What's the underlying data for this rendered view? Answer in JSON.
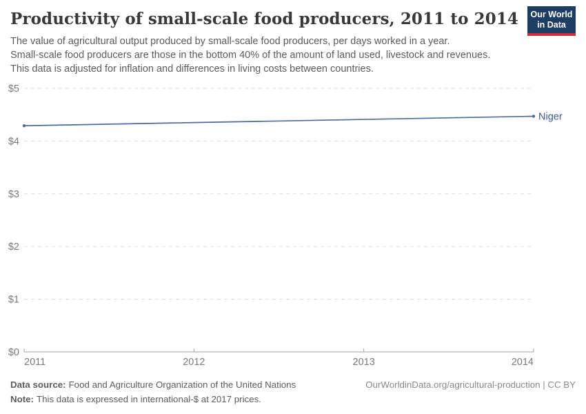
{
  "header": {
    "title": "Productivity of small-scale food producers, 2011 to 2014",
    "subtitle_lines": [
      "The value of agricultural output produced by small-scale food producers, per days worked in a year.",
      "Small-scale food producers are those in the bottom 40% of the amount of land used, livestock and revenues.",
      "This data is adjusted for inflation and differences in living costs between countries."
    ],
    "logo": {
      "line1": "Our World",
      "line2": "in Data"
    }
  },
  "chart_data": {
    "type": "line",
    "title": "Productivity of small-scale food producers, 2011 to 2014",
    "x": [
      2011,
      2012,
      2013,
      2014
    ],
    "x_tick_labels": [
      "2011",
      "2012",
      "2013",
      "2014"
    ],
    "series": [
      {
        "name": "Niger",
        "values": [
          4.29,
          4.35,
          4.41,
          4.47
        ],
        "color": "#4c6a9c"
      }
    ],
    "ylim": [
      0,
      5
    ],
    "y_ticks": [
      0,
      1,
      2,
      3,
      4,
      5
    ],
    "y_tick_labels": [
      "$0",
      "$1",
      "$2",
      "$3",
      "$4",
      "$5"
    ],
    "grid": "horizontal-dashed",
    "legend": "end-of-line-label",
    "unit": "international-$ at 2017 prices"
  },
  "footer": {
    "source_label": "Data source:",
    "source_text": "Food and Agriculture Organization of the United Nations",
    "note_label": "Note:",
    "note_text": "This data is expressed in international-$ at 2017 prices.",
    "link_text": "OurWorldinData.org/agricultural-production | CC BY"
  },
  "colors": {
    "title": "#383838",
    "subtitle": "#5b5b5b",
    "line": "#4c6a9c",
    "series_label": "#3d5a89",
    "gridline": "#dddddd",
    "axis_line": "#a1a1a1",
    "tick_label": "#7a7a7a",
    "logo_bg": "#1d3d63",
    "logo_stripe": "#cf2d41"
  }
}
